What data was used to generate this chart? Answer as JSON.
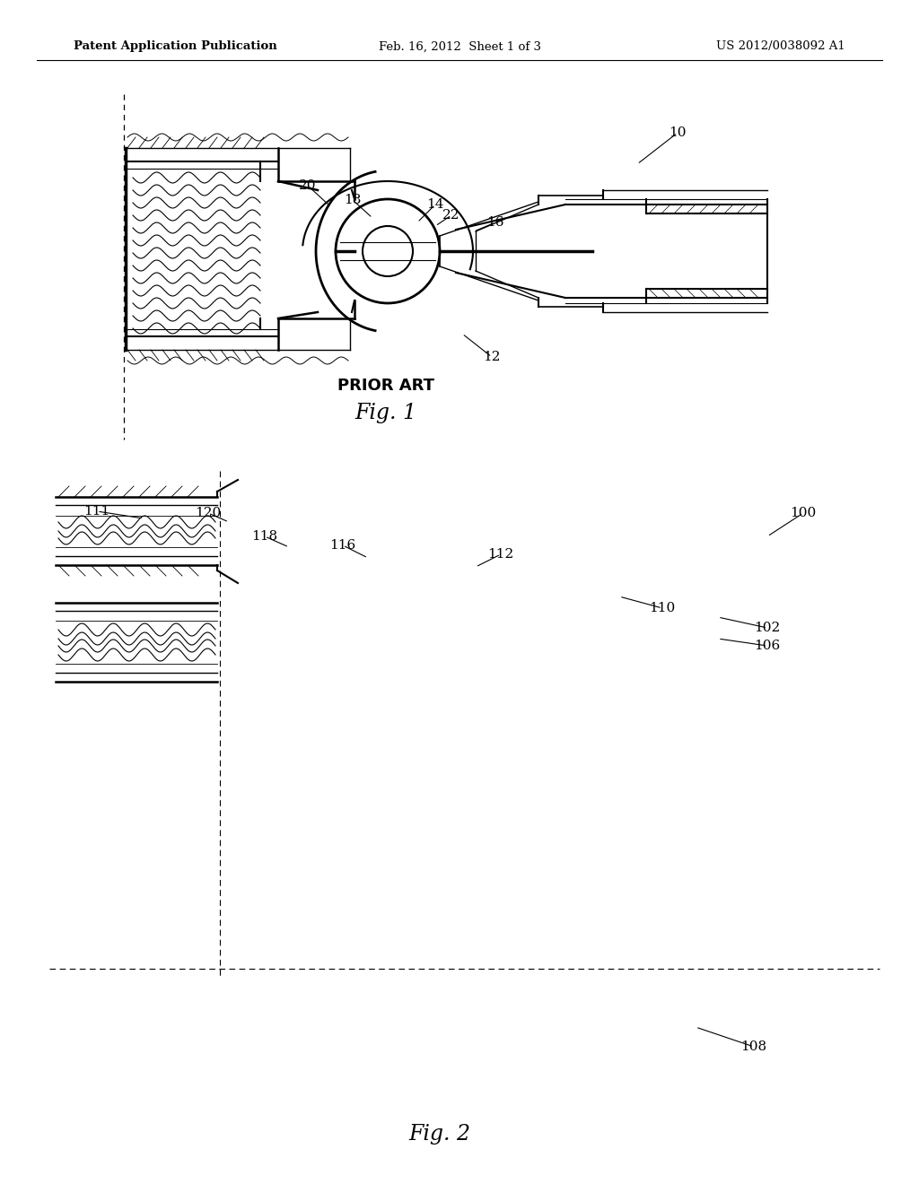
{
  "bg_color": "#ffffff",
  "header_left": "Patent Application Publication",
  "header_center": "Feb. 16, 2012  Sheet 1 of 3",
  "header_right": "US 2012/0038092 A1",
  "fig1_label": "Fig. 1",
  "fig1_prior_art": "PRIOR ART",
  "fig2_label": "Fig. 2",
  "header_fontsize": 9.5,
  "ref_fontsize": 11,
  "fig_label_fontsize": 17,
  "prior_art_fontsize": 13,
  "fig1_refs": [
    [
      "10",
      755,
      148,
      710,
      183
    ],
    [
      "12",
      548,
      398,
      515,
      372
    ],
    [
      "14",
      485,
      228,
      465,
      248
    ],
    [
      "16",
      552,
      248,
      528,
      258
    ],
    [
      "18",
      393,
      223,
      415,
      243
    ],
    [
      "20",
      343,
      207,
      368,
      230
    ],
    [
      "22",
      503,
      240,
      485,
      252
    ]
  ],
  "fig2_refs": [
    [
      "100",
      895,
      572,
      855,
      598
    ],
    [
      "102",
      855,
      700,
      800,
      688
    ],
    [
      "106",
      855,
      720,
      800,
      712
    ],
    [
      "108",
      840,
      1167,
      775,
      1145
    ],
    [
      "110",
      738,
      678,
      690,
      665
    ],
    [
      "111",
      108,
      570,
      160,
      578
    ],
    [
      "112",
      558,
      618,
      530,
      632
    ],
    [
      "116",
      382,
      608,
      410,
      622
    ],
    [
      "118",
      295,
      598,
      322,
      610
    ],
    [
      "120",
      232,
      572,
      255,
      582
    ]
  ]
}
